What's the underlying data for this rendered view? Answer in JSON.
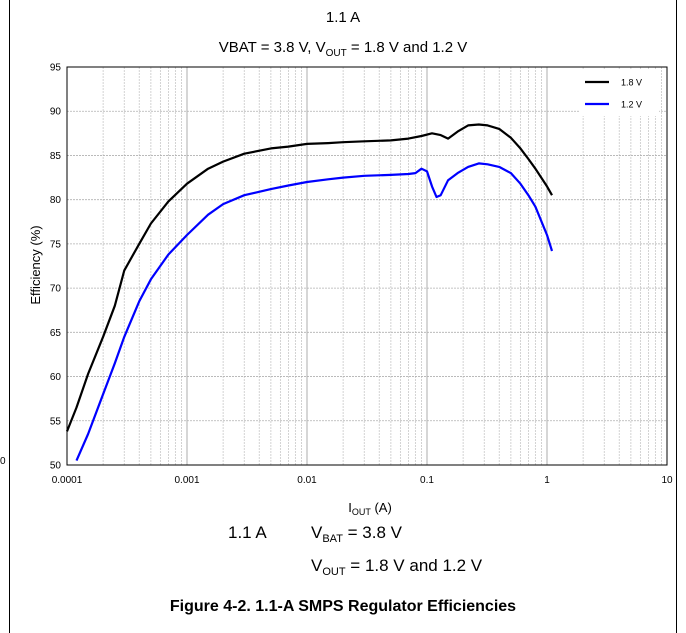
{
  "chart_data": {
    "type": "line",
    "title": "1.1 A",
    "subtitle": {
      "prefix": "VBAT = 3.8 V, V",
      "out_sub": "OUT",
      "suffix": " = 1.8 V and 1.2 V"
    },
    "xlabel": {
      "main": "I",
      "sub": "OUT",
      "unit": " (A)"
    },
    "ylabel": "Efficiency (%)",
    "x_scale": "log",
    "xlim": [
      0.0001,
      10
    ],
    "ylim": [
      50,
      95
    ],
    "x_ticks": [
      0.0001,
      0.001,
      0.01,
      0.1,
      1,
      10
    ],
    "x_tick_labels": [
      "0.0001",
      "0.001",
      "0.01",
      "0.1",
      "1",
      "10"
    ],
    "y_ticks": [
      50,
      55,
      60,
      65,
      70,
      75,
      80,
      85,
      90,
      95
    ],
    "y_tick_labels": [
      "50",
      "55",
      "60",
      "65",
      "70",
      "75",
      "80",
      "85",
      "90",
      "95"
    ],
    "grid": true,
    "legend_position": "top-right",
    "series": [
      {
        "name": "1.8 V",
        "color": "#000000",
        "x": [
          0.0001,
          0.00012,
          0.00015,
          0.0002,
          0.00025,
          0.0003,
          0.0004,
          0.0005,
          0.0007,
          0.001,
          0.0015,
          0.002,
          0.003,
          0.005,
          0.007,
          0.01,
          0.015,
          0.02,
          0.03,
          0.05,
          0.07,
          0.09,
          0.11,
          0.13,
          0.15,
          0.18,
          0.22,
          0.27,
          0.32,
          0.4,
          0.5,
          0.6,
          0.7,
          0.8,
          1.0,
          1.1
        ],
        "y": [
          53.8,
          56.5,
          60.3,
          64.5,
          68.0,
          72.0,
          75.0,
          77.3,
          79.8,
          81.8,
          83.5,
          84.3,
          85.2,
          85.8,
          86.0,
          86.3,
          86.4,
          86.5,
          86.6,
          86.7,
          86.9,
          87.2,
          87.5,
          87.3,
          86.9,
          87.7,
          88.4,
          88.5,
          88.4,
          88.0,
          87.0,
          85.8,
          84.6,
          83.5,
          81.5,
          80.5
        ]
      },
      {
        "name": "1.2 V",
        "color": "#0000ff",
        "x": [
          0.00012,
          0.00015,
          0.0002,
          0.00025,
          0.0003,
          0.0004,
          0.0005,
          0.0007,
          0.001,
          0.0015,
          0.002,
          0.003,
          0.005,
          0.007,
          0.01,
          0.015,
          0.02,
          0.03,
          0.05,
          0.07,
          0.08,
          0.09,
          0.1,
          0.11,
          0.12,
          0.13,
          0.15,
          0.18,
          0.22,
          0.27,
          0.32,
          0.4,
          0.5,
          0.6,
          0.7,
          0.8,
          1.0,
          1.1
        ],
        "y": [
          50.5,
          53.5,
          58.0,
          61.5,
          64.5,
          68.5,
          71.0,
          73.8,
          76.0,
          78.3,
          79.5,
          80.5,
          81.2,
          81.6,
          82.0,
          82.3,
          82.5,
          82.7,
          82.8,
          82.9,
          83.0,
          83.5,
          83.2,
          81.5,
          80.3,
          80.5,
          82.2,
          83.0,
          83.7,
          84.1,
          84.0,
          83.7,
          83.0,
          81.8,
          80.5,
          79.2,
          76.0,
          74.2
        ]
      }
    ]
  },
  "annotation": {
    "current": "1.1 A",
    "vbat_prefix": "V",
    "vbat_sub": "BAT",
    "vbat_value": " = 3.8 V",
    "vout_prefix": "V",
    "vout_sub": "OUT",
    "vout_value": " = 1.8 V and 1.2 V"
  },
  "figure_caption": "Figure 4-2. 1.1-A SMPS Regulator Efficiencies",
  "edge_fragment": "0"
}
